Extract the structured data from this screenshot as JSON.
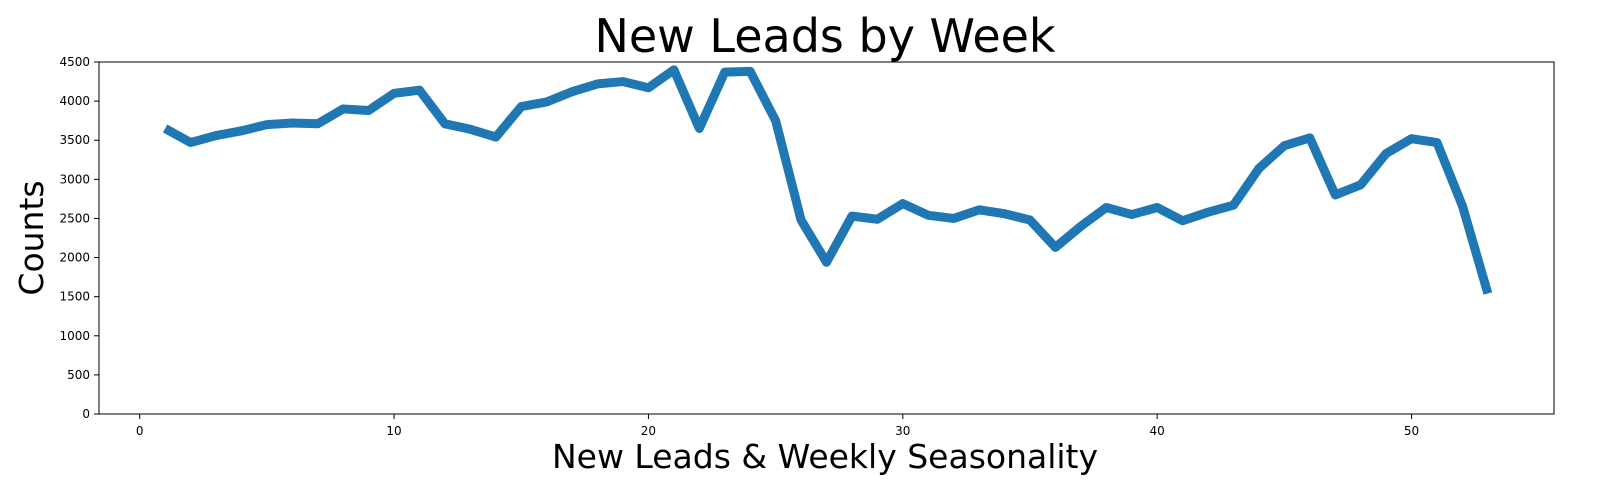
{
  "chart_data": {
    "type": "line",
    "title": "New Leads by Week",
    "xlabel": "New Leads & Weekly Seasonality",
    "ylabel": "Counts",
    "xlim": [
      -1.6,
      55.6
    ],
    "ylim": [
      0,
      4500
    ],
    "xticks": [
      0,
      10,
      20,
      30,
      40,
      50
    ],
    "yticks": [
      0,
      500,
      1000,
      1500,
      2000,
      2500,
      3000,
      3500,
      4000,
      4500
    ],
    "grid": false,
    "legend": "none",
    "series": [
      {
        "color": "#1f77b4",
        "x": [
          1,
          2,
          3,
          4,
          5,
          6,
          7,
          8,
          9,
          10,
          11,
          12,
          13,
          14,
          15,
          16,
          17,
          18,
          19,
          20,
          21,
          22,
          23,
          24,
          25,
          26,
          27,
          28,
          29,
          30,
          31,
          32,
          33,
          34,
          35,
          36,
          37,
          38,
          39,
          40,
          41,
          42,
          43,
          44,
          45,
          46,
          47,
          48,
          49,
          50,
          51,
          52,
          53
        ],
        "values": [
          3650,
          3470,
          3560,
          3620,
          3700,
          3720,
          3710,
          3900,
          3880,
          4100,
          4140,
          3710,
          3640,
          3540,
          3930,
          3990,
          4120,
          4220,
          4250,
          4170,
          4400,
          3650,
          4370,
          4380,
          3750,
          2480,
          1940,
          2530,
          2490,
          2690,
          2540,
          2500,
          2610,
          2560,
          2480,
          2130,
          2400,
          2640,
          2550,
          2640,
          2470,
          2580,
          2670,
          3140,
          3430,
          3530,
          2800,
          2930,
          3330,
          3520,
          3470,
          2660,
          1540
        ]
      }
    ]
  }
}
